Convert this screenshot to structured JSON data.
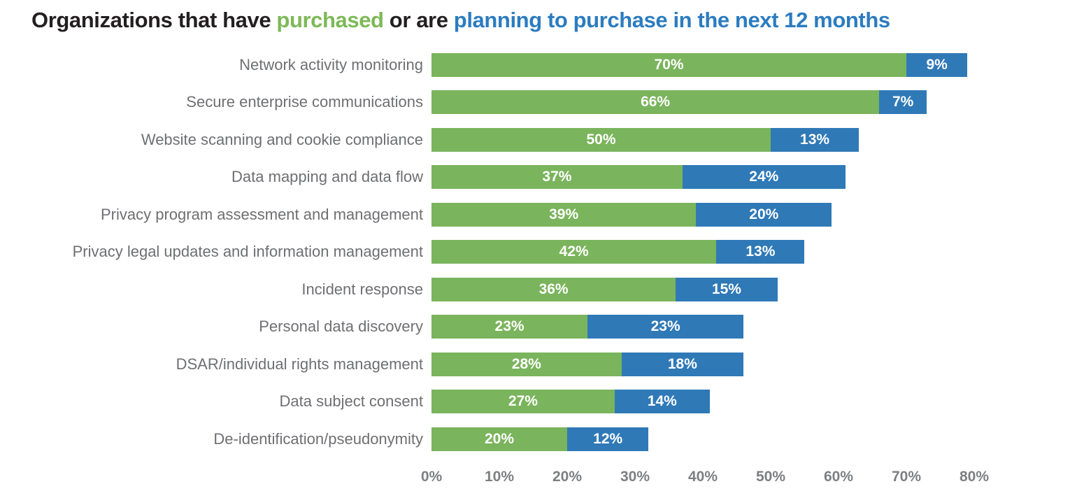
{
  "title": {
    "part1": "Organizations that have ",
    "part2": "purchased",
    "part3": " or are ",
    "part4": "planning to purchase in the next 12 months"
  },
  "colors": {
    "purchased_green": "#7ab45c",
    "planning_blue": "#2f79b7",
    "title_text": "#231f20",
    "title_green": "#7cb956",
    "title_blue": "#2b7cc0",
    "category_label_gray": "#6e6f72",
    "axis_label_gray": "#7d7f82",
    "value_label_white": "#ffffff"
  },
  "chart_data": {
    "type": "bar",
    "subtype": "horizontal-stacked",
    "title": "Organizations that have purchased or are planning to purchase in the next 12 months",
    "categories": [
      "Network activity monitoring",
      "Secure enterprise communications",
      "Website scanning and cookie compliance",
      "Data mapping and data flow",
      "Privacy program assessment and management",
      "Privacy legal updates and information management",
      "Incident response",
      "Personal data discovery",
      "DSAR/individual rights management",
      "Data subject consent",
      "De-identification/pseudonymity"
    ],
    "series": [
      {
        "name": "purchased",
        "color": "#7ab45c",
        "values": [
          70,
          66,
          50,
          37,
          39,
          42,
          36,
          23,
          28,
          27,
          20
        ]
      },
      {
        "name": "planning to purchase in the next 12 months",
        "color": "#2f79b7",
        "values": [
          9,
          7,
          13,
          24,
          20,
          13,
          15,
          23,
          18,
          14,
          12
        ]
      }
    ],
    "value_label_format": "{value}%",
    "xlabel": "",
    "ylabel": "",
    "xlim": [
      0,
      80
    ],
    "x_ticks": [
      "0%",
      "10%",
      "20%",
      "30%",
      "40%",
      "50%",
      "60%",
      "70%",
      "80%"
    ],
    "grid": false,
    "legend_position": "encoded-in-title"
  }
}
